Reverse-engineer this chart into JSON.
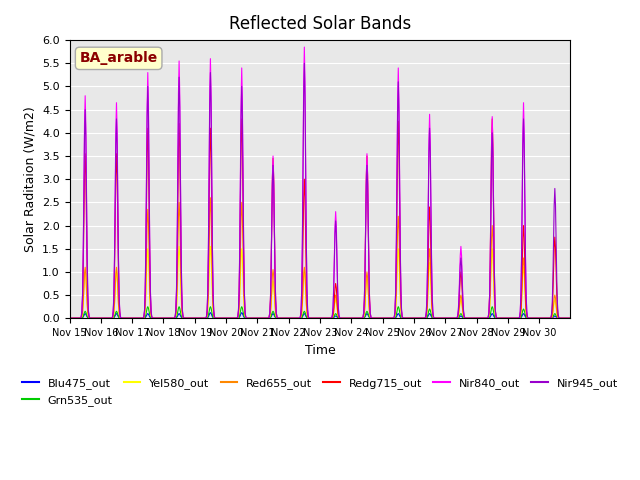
{
  "title": "Reflected Solar Bands",
  "xlabel": "Time",
  "ylabel": "Solar Raditaion (W/m2)",
  "annotation": "BA_arable",
  "annotation_color": "#8B0000",
  "annotation_bg": "#FFFFCC",
  "ylim": [
    0,
    6.0
  ],
  "yticks": [
    0.0,
    0.5,
    1.0,
    1.5,
    2.0,
    2.5,
    3.0,
    3.5,
    4.0,
    4.5,
    5.0,
    5.5,
    6.0
  ],
  "xtick_labels": [
    "Nov 15",
    "Nov 16",
    "Nov 17",
    "Nov 18",
    "Nov 19",
    "Nov 20",
    "Nov 21",
    "Nov 22",
    "Nov 23",
    "Nov 24",
    "Nov 25",
    "Nov 26",
    "Nov 27",
    "Nov 28",
    "Nov 29",
    "Nov 30"
  ],
  "series_colors": {
    "Blu475_out": "#0000FF",
    "Grn535_out": "#00CC00",
    "Yel580_out": "#FFFF00",
    "Red655_out": "#FF8800",
    "Redg715_out": "#FF0000",
    "Nir840_out": "#FF00FF",
    "Nir945_out": "#9900CC"
  },
  "nir840_peaks": [
    4.8,
    4.65,
    5.3,
    5.55,
    5.6,
    5.4,
    3.5,
    5.85,
    2.3,
    3.55,
    5.4,
    4.4,
    1.55,
    4.35,
    4.65,
    0.0
  ],
  "nir945_peaks": [
    4.5,
    4.3,
    5.0,
    5.2,
    5.3,
    5.0,
    3.3,
    5.5,
    2.1,
    3.3,
    5.1,
    4.1,
    1.3,
    4.0,
    4.3,
    2.8
  ],
  "redg715_peaks": [
    3.55,
    3.55,
    4.1,
    4.2,
    4.1,
    4.3,
    3.45,
    3.0,
    0.75,
    3.5,
    4.25,
    2.4,
    1.0,
    4.3,
    2.0,
    1.75
  ],
  "red655_peaks": [
    1.1,
    1.1,
    2.35,
    2.5,
    2.6,
    2.5,
    1.05,
    1.1,
    0.5,
    1.0,
    2.2,
    1.5,
    0.5,
    2.0,
    1.3,
    0.5
  ],
  "yel580_peaks": [
    1.05,
    1.05,
    1.5,
    1.55,
    1.55,
    1.5,
    0.8,
    1.05,
    0.4,
    0.9,
    1.5,
    1.2,
    0.4,
    1.5,
    1.1,
    0.4
  ],
  "grn535_peaks": [
    0.15,
    0.15,
    0.25,
    0.25,
    0.25,
    0.25,
    0.15,
    0.15,
    0.1,
    0.15,
    0.25,
    0.2,
    0.1,
    0.25,
    0.2,
    0.1
  ],
  "blu475_peaks": [
    0.1,
    0.1,
    0.1,
    0.1,
    0.12,
    0.12,
    0.1,
    0.1,
    0.05,
    0.1,
    0.1,
    0.1,
    0.05,
    0.1,
    0.1,
    0.05
  ],
  "background_color": "#E8E8E8",
  "grid_color": "#FFFFFF",
  "figsize": [
    6.4,
    4.8
  ],
  "dpi": 100
}
